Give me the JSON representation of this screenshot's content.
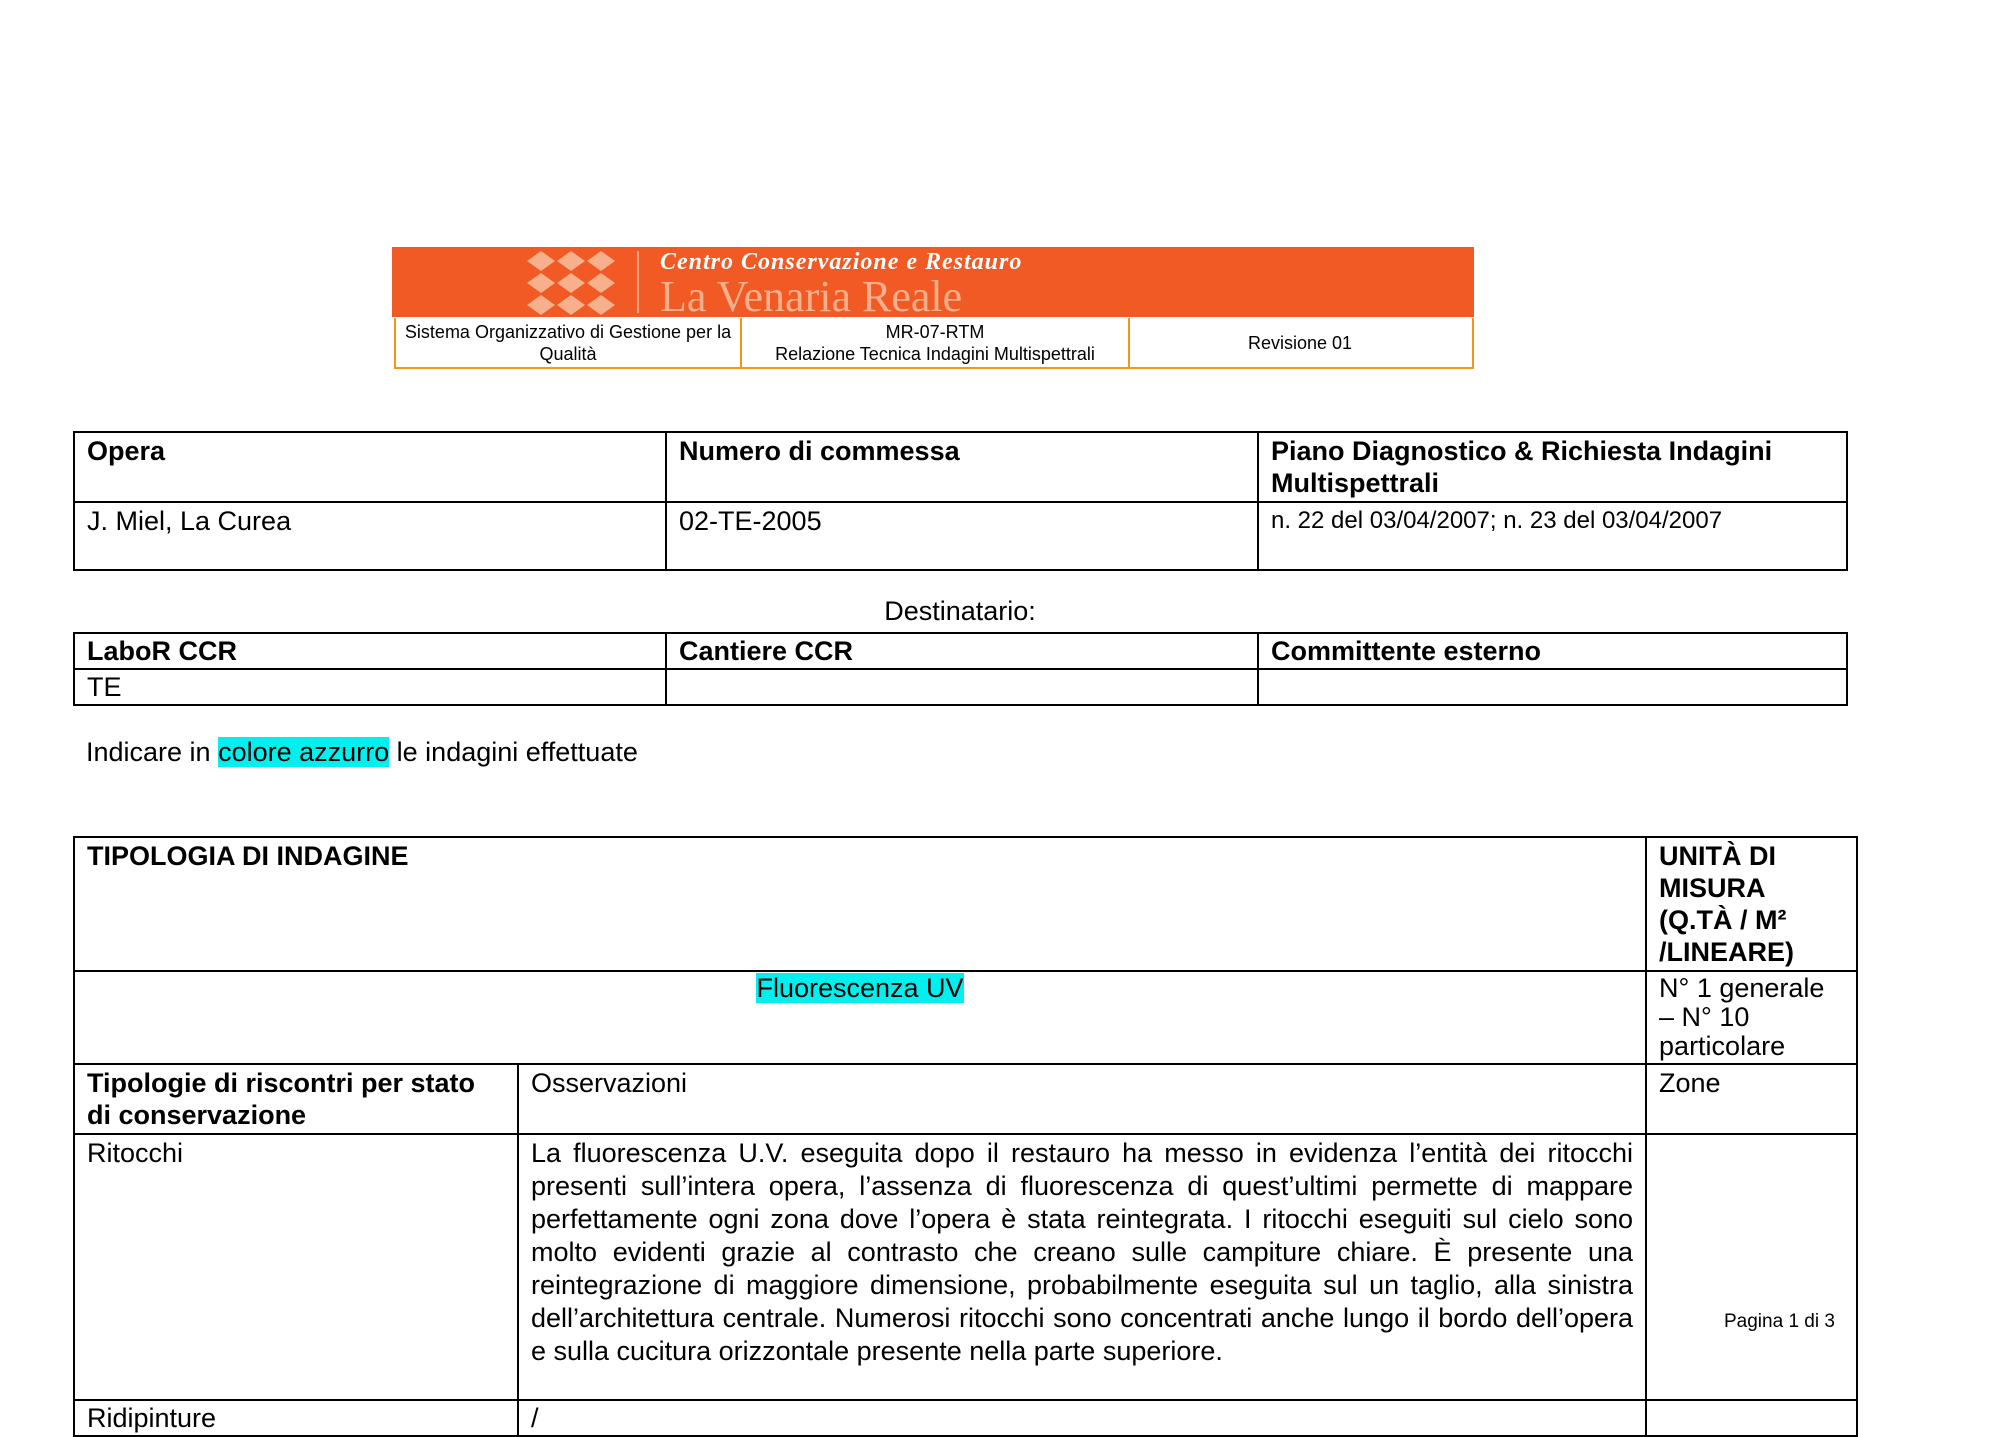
{
  "header": {
    "logo_line1": "Centro Conservazione e Restauro",
    "logo_line2": "La Venaria Reale",
    "system": "Sistema Organizzativo di Gestione per la Qualità",
    "code": "MR-07-RTM",
    "doc_title": "Relazione Tecnica Indagini Multispettrali",
    "revision": "Revisione 01",
    "colors": {
      "brand": "#f15a24",
      "border": "#f7941d"
    }
  },
  "work_table": {
    "headers": [
      "Opera",
      "Numero di commessa",
      "Piano Diagnostico & Richiesta Indagini Multispettrali"
    ],
    "values": [
      "J. Miel, La Curea",
      "02-TE-2005",
      "n. 22 del 03/04/2007; n. 23 del 03/04/2007"
    ]
  },
  "recipient": {
    "label": "Destinatario:",
    "headers": [
      "LaboR CCR",
      "Cantiere CCR",
      "Committente esterno"
    ],
    "values": [
      "TE",
      "",
      ""
    ]
  },
  "instruction": {
    "before": "Indicare in ",
    "highlight": "colore azzurro",
    "after": " le indagini effettuate",
    "highlight_color": "#00f0f0"
  },
  "survey_table": {
    "type_header": "TIPOLOGIA DI INDAGINE",
    "unit_header": "UNITÀ DI MISURA (Q.TÀ / M² /LINEARE)",
    "type_value": "Fluorescenza UV",
    "unit_value": "N° 1 generale – N° 10 particolare",
    "col_headers": [
      "Tipologie di riscontri per stato di conservazione",
      "Osservazioni",
      "Zone"
    ],
    "rows": [
      {
        "type": "Ritocchi",
        "observations": "La fluorescenza U.V. eseguita dopo il restauro ha messo in evidenza l’entità dei ritocchi presenti sull’intera opera, l’assenza di fluorescenza di quest’ultimi permette di mappare perfettamente ogni zona dove l’opera è stata reintegrata. I ritocchi eseguiti sul cielo sono molto evidenti grazie al contrasto che creano sulle campiture chiare. È presente una reintegrazione di maggiore dimensione, probabilmente eseguita sul un taglio, alla sinistra dell’architettura centrale. Numerosi ritocchi sono concentrati anche lungo il bordo dell’opera e sulla cucitura orizzontale presente nella parte superiore.",
        "zones": ""
      },
      {
        "type": "Ridipinture",
        "observations": "/",
        "zones": ""
      }
    ]
  },
  "footer": {
    "page": "Pagina 1 di 3"
  }
}
